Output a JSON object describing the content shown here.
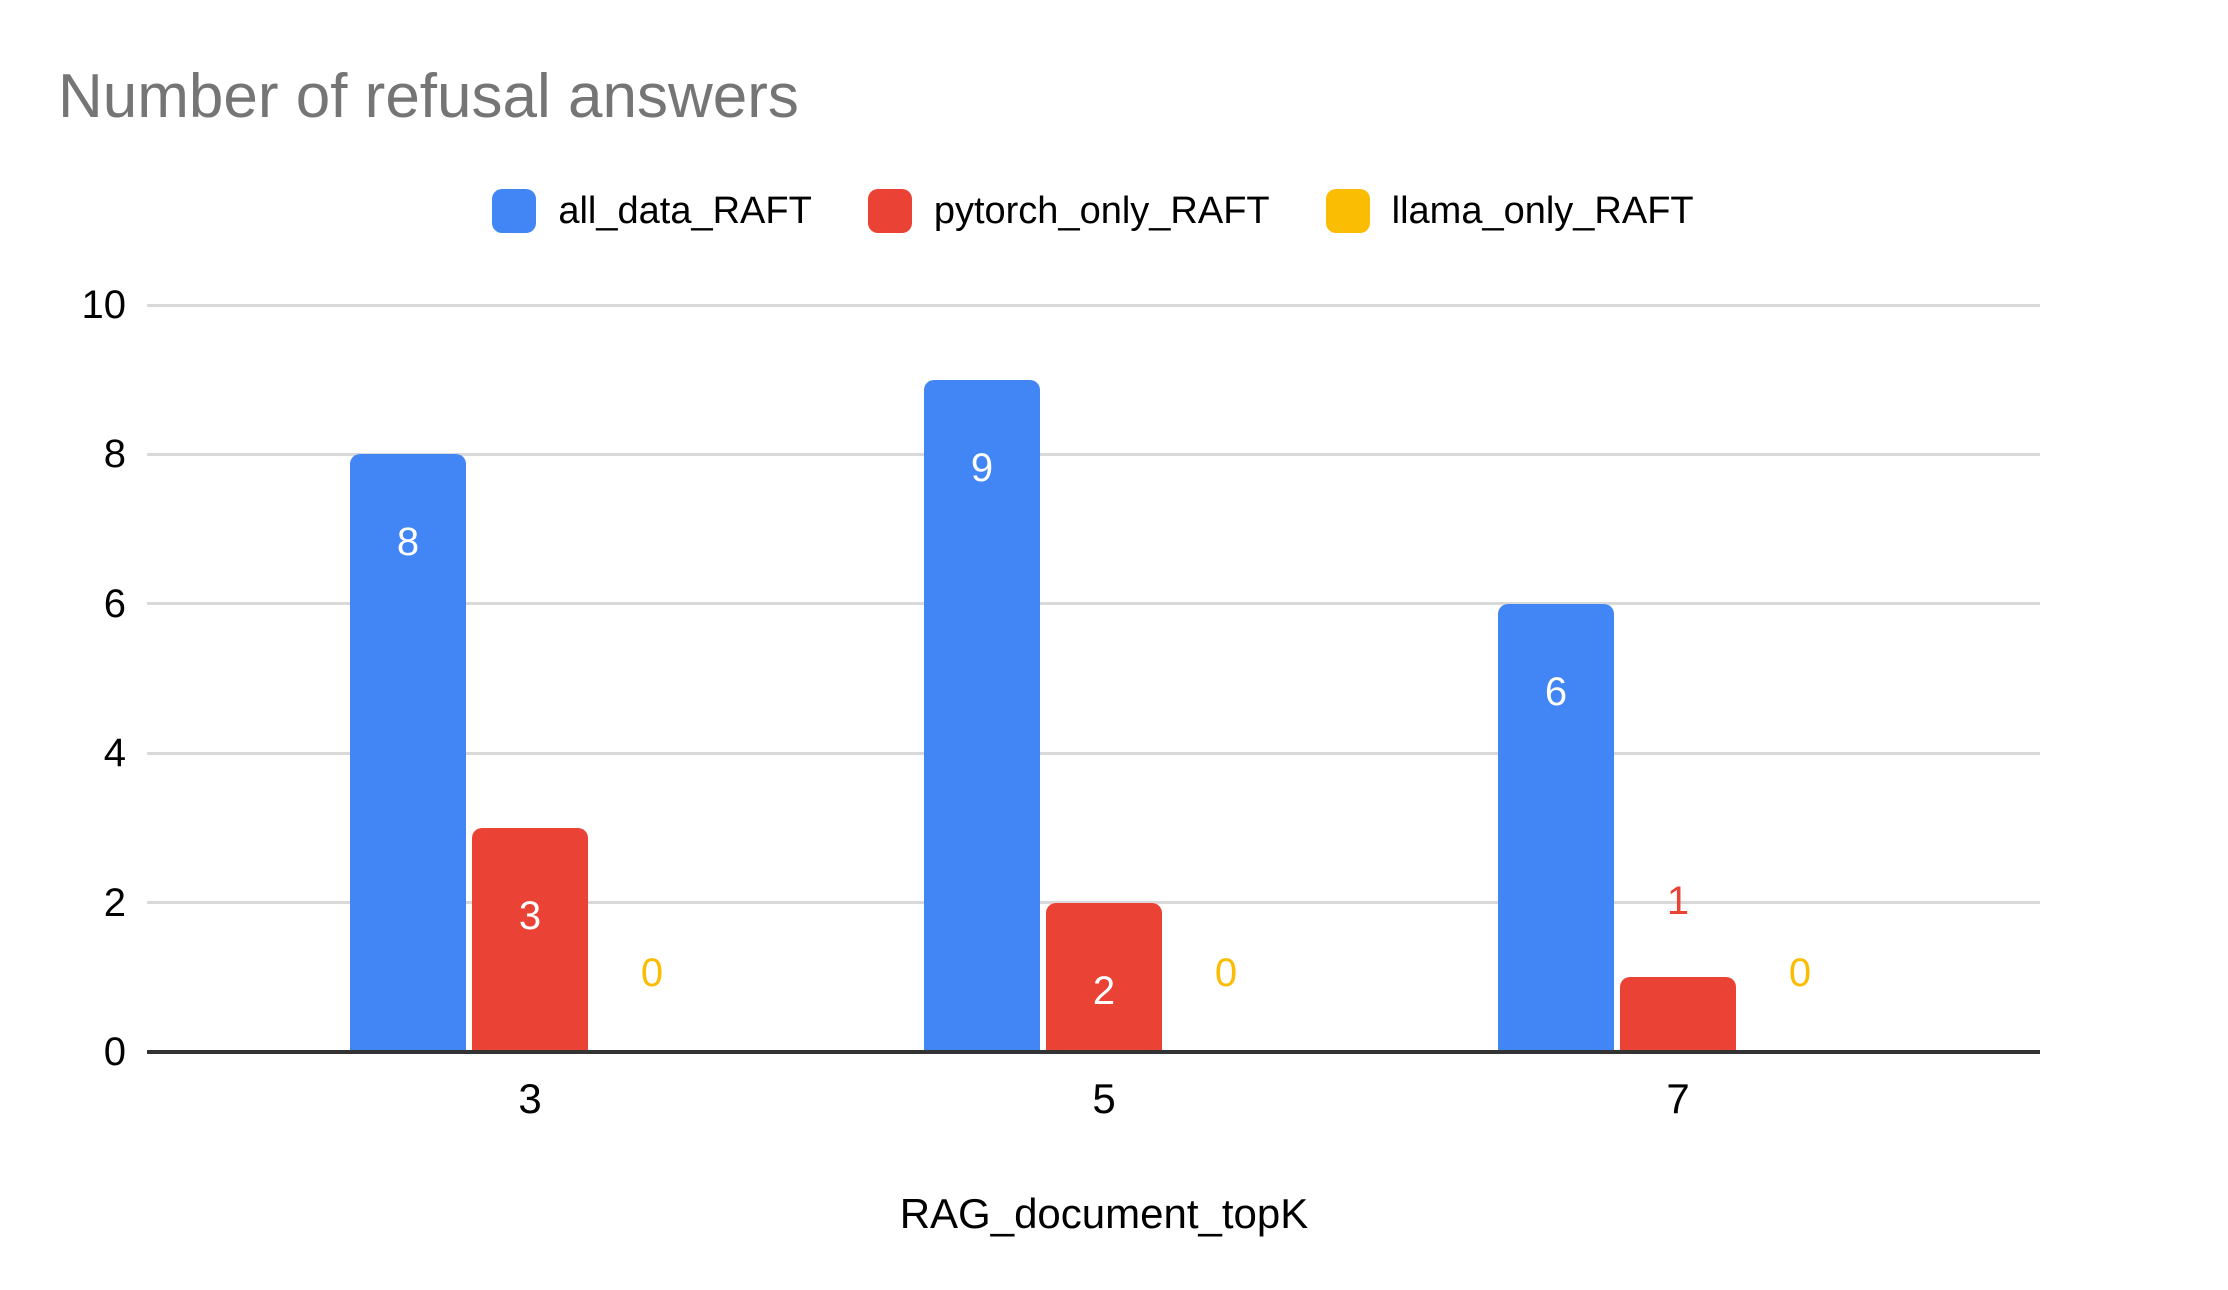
{
  "chart": {
    "title": "Number of refusal answers",
    "x_axis_title": "RAG_document_topK"
  },
  "chart_data": {
    "type": "bar",
    "title": "Number of refusal answers",
    "xlabel": "RAG_document_topK",
    "ylabel": "",
    "categories": [
      "3",
      "5",
      "7"
    ],
    "series": [
      {
        "name": "all_data_RAFT",
        "color": "#4285F4",
        "values": [
          8,
          9,
          6
        ]
      },
      {
        "name": "pytorch_only_RAFT",
        "color": "#EA4335",
        "values": [
          3,
          2,
          1
        ]
      },
      {
        "name": "llama_only_RAFT",
        "color": "#FBBC04",
        "values": [
          0,
          0,
          0
        ]
      }
    ],
    "ylim": [
      0,
      10
    ],
    "yticks": [
      0,
      2,
      4,
      6,
      8,
      10
    ],
    "grid": true,
    "legend_position": "top",
    "annotations": "value labels: white inside tall bars, series-colored above short bars, series-colored 0 text above axis for zero values"
  },
  "colors": {
    "title_text": "#757575",
    "axis_text": "#000000",
    "gridline": "#d9d9d9",
    "axis_line": "#333333",
    "background": "#ffffff",
    "inside_bar_label": "#ffffff"
  }
}
